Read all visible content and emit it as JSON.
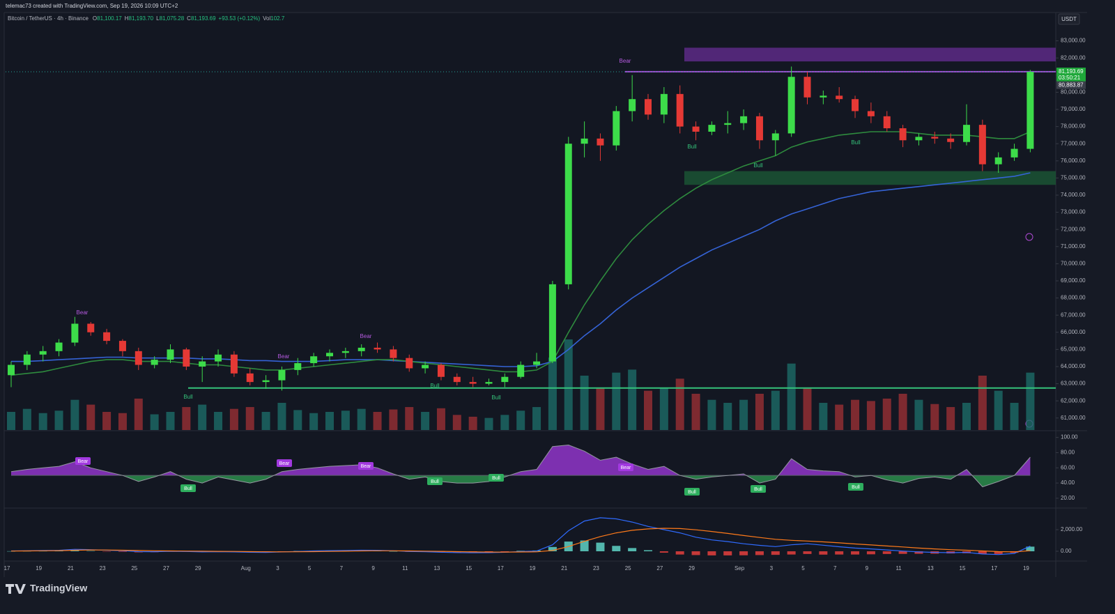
{
  "header": {
    "credit": "telemac73 created with TradingView.com, Sep 19, 2026 10:09 UTC+2",
    "symbol": "Bitcoin / TetherUS · 4h · Binance",
    "ohlc": [
      {
        "key": "O",
        "value": "81,100.17"
      },
      {
        "key": "H",
        "value": "81,193.70"
      },
      {
        "key": "L",
        "value": "81,075.28"
      },
      {
        "key": "C",
        "value": "81,193.69"
      }
    ],
    "change": "+93.53 (+0.12%)",
    "volume_key": "Vol",
    "volume_value": "102.7"
  },
  "currency": "USDT",
  "footer": {
    "brand": "TradingView"
  },
  "chart_data": [
    {
      "type": "candlestick",
      "categories": [
        "17",
        null,
        "19",
        null,
        "21",
        null,
        "23",
        null,
        "25",
        null,
        "27",
        null,
        "29",
        null,
        null,
        "Aug",
        null,
        "3",
        null,
        "5",
        null,
        "7",
        null,
        "9",
        null,
        "11",
        null,
        "13",
        null,
        "15",
        null,
        "17",
        null,
        "19",
        null,
        "21",
        null,
        "23",
        null,
        "25",
        null,
        "27",
        null,
        "29",
        null,
        null,
        "Sep",
        null,
        "3",
        null,
        "5",
        null,
        "7",
        null,
        "9",
        null,
        "11",
        null,
        "13",
        null,
        "15",
        null,
        "17",
        null,
        "19"
      ],
      "open": [
        63500,
        64100,
        64700,
        64900,
        65400,
        66500,
        66000,
        65500,
        64900,
        64100,
        64400,
        65000,
        64000,
        64300,
        64700,
        63600,
        63100,
        63200,
        63800,
        64200,
        64600,
        64800,
        64900,
        65100,
        65000,
        64500,
        63900,
        64100,
        63400,
        63100,
        63000,
        63100,
        63400,
        64100,
        64300,
        68800,
        77000,
        77300,
        76900,
        78900,
        79600,
        78700,
        79900,
        78000,
        77700,
        78100,
        78200,
        78600,
        77200,
        77600,
        80900,
        79700,
        79800,
        79600,
        78900,
        78600,
        77900,
        77200,
        77400,
        77300,
        77100,
        78100,
        75800,
        76200,
        76700
      ],
      "high": [
        64300,
        64900,
        65200,
        65600,
        66900,
        66600,
        66200,
        65600,
        65100,
        64600,
        65300,
        65100,
        64600,
        65000,
        64900,
        63900,
        63500,
        64000,
        64500,
        64800,
        65000,
        65100,
        65300,
        65400,
        65200,
        64700,
        64300,
        64200,
        63600,
        63400,
        63300,
        63600,
        64300,
        64800,
        69000,
        77400,
        78300,
        77600,
        79200,
        81000,
        79900,
        80300,
        80400,
        78300,
        78300,
        78900,
        79000,
        78800,
        77800,
        81500,
        81200,
        80100,
        80300,
        79800,
        79400,
        78900,
        78100,
        77600,
        77700,
        77600,
        79300,
        78400,
        76500,
        77000,
        81300
      ],
      "low": [
        62800,
        63800,
        64300,
        64600,
        65200,
        65800,
        65300,
        64600,
        63800,
        63900,
        64200,
        63800,
        63100,
        64000,
        63400,
        62900,
        62700,
        62600,
        63500,
        64000,
        64300,
        64500,
        64600,
        64800,
        64300,
        63700,
        63600,
        63200,
        62900,
        62800,
        62900,
        62800,
        63300,
        63900,
        64200,
        68500,
        76200,
        76000,
        76600,
        78300,
        78400,
        78200,
        77600,
        77200,
        77500,
        77600,
        77800,
        76700,
        76300,
        77400,
        79300,
        79300,
        79400,
        78500,
        78200,
        77700,
        76800,
        76900,
        77000,
        76700,
        76900,
        75400,
        75300,
        76000,
        76500
      ],
      "close": [
        64100,
        64700,
        64900,
        65400,
        66500,
        66000,
        65500,
        64900,
        64100,
        64400,
        65000,
        64000,
        64300,
        64700,
        63600,
        63100,
        63200,
        63800,
        64200,
        64600,
        64800,
        64900,
        65100,
        65000,
        64500,
        63900,
        64100,
        63400,
        63100,
        63000,
        63100,
        63400,
        64100,
        64300,
        68800,
        77000,
        77300,
        76900,
        78900,
        79600,
        78700,
        79900,
        78000,
        77700,
        78100,
        78200,
        78600,
        77200,
        77600,
        80900,
        79700,
        79800,
        79600,
        78900,
        78600,
        77900,
        77200,
        77400,
        77300,
        77100,
        78100,
        75800,
        76200,
        76700,
        81193.69
      ],
      "volume": [
        300,
        350,
        280,
        320,
        500,
        420,
        300,
        280,
        520,
        260,
        300,
        380,
        420,
        300,
        350,
        380,
        300,
        450,
        330,
        280,
        300,
        320,
        350,
        300,
        340,
        380,
        300,
        360,
        250,
        220,
        200,
        250,
        320,
        380,
        1200,
        1500,
        900,
        700,
        950,
        1000,
        650,
        700,
        850,
        600,
        500,
        450,
        500,
        600,
        650,
        1100,
        700,
        450,
        420,
        500,
        480,
        520,
        600,
        500,
        430,
        380,
        450,
        900,
        650,
        450,
        950
      ],
      "up_color": "#3ddc4a",
      "down_color": "#e53935",
      "volume_up_color": "#1d6b68",
      "volume_down_color": "#9a2f35",
      "series": [
        {
          "color": "#3563d6",
          "values": [
            64300,
            64300,
            64350,
            64400,
            64450,
            64500,
            64550,
            64550,
            64500,
            64500,
            64500,
            64500,
            64450,
            64450,
            64400,
            64350,
            64350,
            64300,
            64300,
            64300,
            64350,
            64400,
            64400,
            64400,
            64350,
            64300,
            64250,
            64200,
            64150,
            64100,
            64050,
            64000,
            64000,
            64050,
            64300,
            65000,
            65800,
            66500,
            67300,
            68000,
            68600,
            69200,
            69800,
            70300,
            70800,
            71200,
            71600,
            72000,
            72500,
            72900,
            73200,
            73500,
            73800,
            74000,
            74200,
            74300,
            74400,
            74500,
            74600,
            74700,
            74800,
            74900,
            75000,
            75100,
            75300
          ]
        },
        {
          "color": "#2e8b3e",
          "values": [
            63500,
            63600,
            63700,
            63900,
            64100,
            64300,
            64400,
            64400,
            64300,
            64300,
            64300,
            64200,
            64100,
            64100,
            64000,
            63900,
            63800,
            63800,
            63900,
            64000,
            64100,
            64200,
            64300,
            64400,
            64400,
            64300,
            64200,
            64100,
            64000,
            63900,
            63800,
            63700,
            63700,
            63800,
            64300,
            66000,
            67600,
            69000,
            70300,
            71400,
            72300,
            73100,
            73800,
            74400,
            74900,
            75300,
            75700,
            76000,
            76300,
            76800,
            77100,
            77300,
            77500,
            77600,
            77700,
            77700,
            77700,
            77600,
            77500,
            77500,
            77500,
            77400,
            77300,
            77300,
            77700
          ]
        }
      ],
      "levels": [
        {
          "value": 81200,
          "color": "#a24fd6"
        },
        {
          "value": 62750,
          "color": "#35c27a"
        }
      ],
      "zones": [
        {
          "top": 82600,
          "bottom": 81800,
          "color": "#5d2a86"
        },
        {
          "top": 75400,
          "bottom": 74600,
          "color": "#1b5434"
        }
      ],
      "annotations": [
        "Bear",
        "Bull",
        "Bear",
        "Bear",
        "Bull",
        "Bull",
        "Bear",
        "Bull",
        "Bull",
        "Bull"
      ],
      "last_price": {
        "value": 81193.69,
        "label": "81,193.69"
      },
      "countdown": "03:50:21",
      "other_price": {
        "value": 80883.87,
        "label": "80,883.87"
      },
      "ylim": [
        60300,
        84650
      ],
      "yticks": [
        {
          "value": 61000,
          "label": "61,000.00"
        },
        {
          "value": 62000,
          "label": "62,000.00"
        },
        {
          "value": 63000,
          "label": "63,000.00"
        },
        {
          "value": 64000,
          "label": "64,000.00"
        },
        {
          "value": 65000,
          "label": "65,000.00"
        },
        {
          "value": 66000,
          "label": "66,000.00"
        },
        {
          "value": 67000,
          "label": "67,000.00"
        },
        {
          "value": 68000,
          "label": "68,000.00"
        },
        {
          "value": 69000,
          "label": "69,000.00"
        },
        {
          "value": 70000,
          "label": "70,000.00"
        },
        {
          "value": 71000,
          "label": "71,000.00"
        },
        {
          "value": 72000,
          "label": "72,000.00"
        },
        {
          "value": 73000,
          "label": "73,000.00"
        },
        {
          "value": 74000,
          "label": "74,000.00"
        },
        {
          "value": 75000,
          "label": "75,000.00"
        },
        {
          "value": 76000,
          "label": "76,000.00"
        },
        {
          "value": 77000,
          "label": "77,000.00"
        },
        {
          "value": 78000,
          "label": "78,000.00"
        },
        {
          "value": 79000,
          "label": "79,000.00"
        },
        {
          "value": 80000,
          "label": "80,000.00"
        },
        {
          "value": 81000,
          "label": "81,000.00"
        },
        {
          "value": 82000,
          "label": "82,000.00"
        },
        {
          "value": 83000,
          "label": "83,000.00"
        }
      ],
      "grid": false
    },
    {
      "type": "oscillator",
      "values": [
        55,
        58,
        60,
        62,
        68,
        60,
        55,
        50,
        42,
        48,
        55,
        45,
        40,
        48,
        44,
        40,
        45,
        55,
        58,
        60,
        62,
        63,
        64,
        60,
        52,
        45,
        48,
        42,
        40,
        40,
        42,
        48,
        55,
        58,
        88,
        90,
        82,
        70,
        74,
        65,
        58,
        62,
        50,
        45,
        48,
        50,
        52,
        40,
        45,
        72,
        58,
        56,
        55,
        48,
        50,
        44,
        40,
        46,
        48,
        45,
        58,
        35,
        42,
        50,
        74
      ],
      "color": "#9598a1",
      "midline": 50,
      "above_color": "#a239e0",
      "below_color": "#2f9e52",
      "annotations": [
        "Bear",
        "Bull",
        "Bear",
        "Bear",
        "Bull",
        "Bull",
        "Bear",
        "Bull",
        "Bull",
        "Bull"
      ],
      "ylim": [
        8,
        107
      ],
      "yticks": [
        {
          "value": 20,
          "label": "20.00"
        },
        {
          "value": 40,
          "label": "40.00"
        },
        {
          "value": 60,
          "label": "60.00"
        },
        {
          "value": 80,
          "label": "80.00"
        },
        {
          "value": 100,
          "label": "100.00"
        }
      ]
    },
    {
      "type": "macd",
      "values": [
        30,
        50,
        70,
        90,
        180,
        150,
        100,
        50,
        -30,
        -40,
        0,
        -20,
        -60,
        -40,
        -60,
        -90,
        -100,
        -60,
        -10,
        30,
        60,
        80,
        100,
        90,
        50,
        -20,
        -40,
        -90,
        -120,
        -140,
        -130,
        -90,
        -20,
        20,
        600,
        1900,
        2800,
        3100,
        3000,
        2700,
        2300,
        2000,
        1700,
        1300,
        1050,
        900,
        700,
        550,
        430,
        600,
        700,
        560,
        420,
        300,
        220,
        120,
        20,
        -60,
        -100,
        -130,
        -100,
        -250,
        -300,
        -200,
        480
      ],
      "signal": [
        20,
        30,
        45,
        60,
        100,
        120,
        115,
        95,
        70,
        45,
        35,
        20,
        5,
        -5,
        -15,
        -30,
        -45,
        -50,
        -45,
        -30,
        -10,
        10,
        30,
        45,
        45,
        30,
        15,
        -5,
        -30,
        -55,
        -70,
        -75,
        -65,
        -50,
        80,
        440,
        920,
        1360,
        1700,
        1940,
        2070,
        2130,
        2100,
        1990,
        1830,
        1650,
        1460,
        1280,
        1110,
        1010,
        950,
        870,
        780,
        680,
        590,
        490,
        400,
        300,
        220,
        150,
        100,
        30,
        -30,
        -60,
        50
      ],
      "histogram": [
        10,
        20,
        25,
        30,
        80,
        30,
        -15,
        -45,
        -100,
        -85,
        -35,
        -40,
        -65,
        -35,
        -45,
        -60,
        -55,
        -10,
        35,
        60,
        70,
        70,
        70,
        45,
        5,
        -50,
        -55,
        -85,
        -90,
        -85,
        -60,
        -15,
        45,
        70,
        400,
        900,
        1000,
        800,
        500,
        300,
        100,
        -130,
        -300,
        -350,
        -380,
        -380,
        -370,
        -350,
        -330,
        -300,
        -250,
        -310,
        -300,
        -300,
        -280,
        -250,
        -240,
        -230,
        -220,
        -200,
        -180,
        -260,
        -250,
        -140,
        430
      ],
      "color": "#2f6bff",
      "signal_color": "#ff7a1a",
      "up_color": "#5fd3c6",
      "down_color": "#e5403d",
      "ylim": [
        -580,
        3870
      ],
      "yticks": [
        {
          "value": 0,
          "label": "0.00"
        },
        {
          "value": 2000,
          "label": "2,000.00"
        }
      ]
    }
  ]
}
